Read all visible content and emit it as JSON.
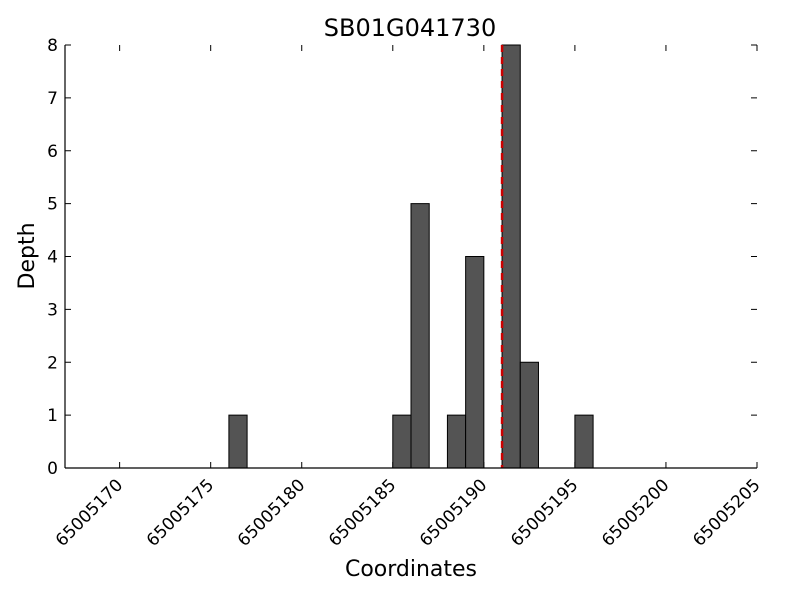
{
  "chart_data": {
    "type": "bar",
    "title": "SB01G041730",
    "xlabel": "Coordinates",
    "ylabel": "Depth",
    "xlim": [
      65005167,
      65005205
    ],
    "ylim": [
      0,
      8
    ],
    "xticks": [
      65005170,
      65005175,
      65005180,
      65005185,
      65005190,
      65005195,
      65005200,
      65005205
    ],
    "xtick_labels": [
      "65005170",
      "65005175",
      "65005180",
      "65005185",
      "65005190",
      "65005195",
      "65005200",
      "65005205"
    ],
    "yticks": [
      0,
      1,
      2,
      3,
      4,
      5,
      6,
      7,
      8
    ],
    "ytick_labels": [
      "0",
      "1",
      "2",
      "3",
      "4",
      "5",
      "6",
      "7",
      "8"
    ],
    "x": [
      65005176,
      65005185,
      65005186,
      65005188,
      65005189,
      65005191,
      65005192,
      65005195
    ],
    "values": [
      1,
      1,
      5,
      1,
      4,
      8,
      2,
      1
    ],
    "bar_color": "#545454",
    "bar_edge_color": "#000000",
    "marker_line": {
      "x": 65005191,
      "color": "#cc0000",
      "style": "dashed"
    },
    "grid": false
  }
}
